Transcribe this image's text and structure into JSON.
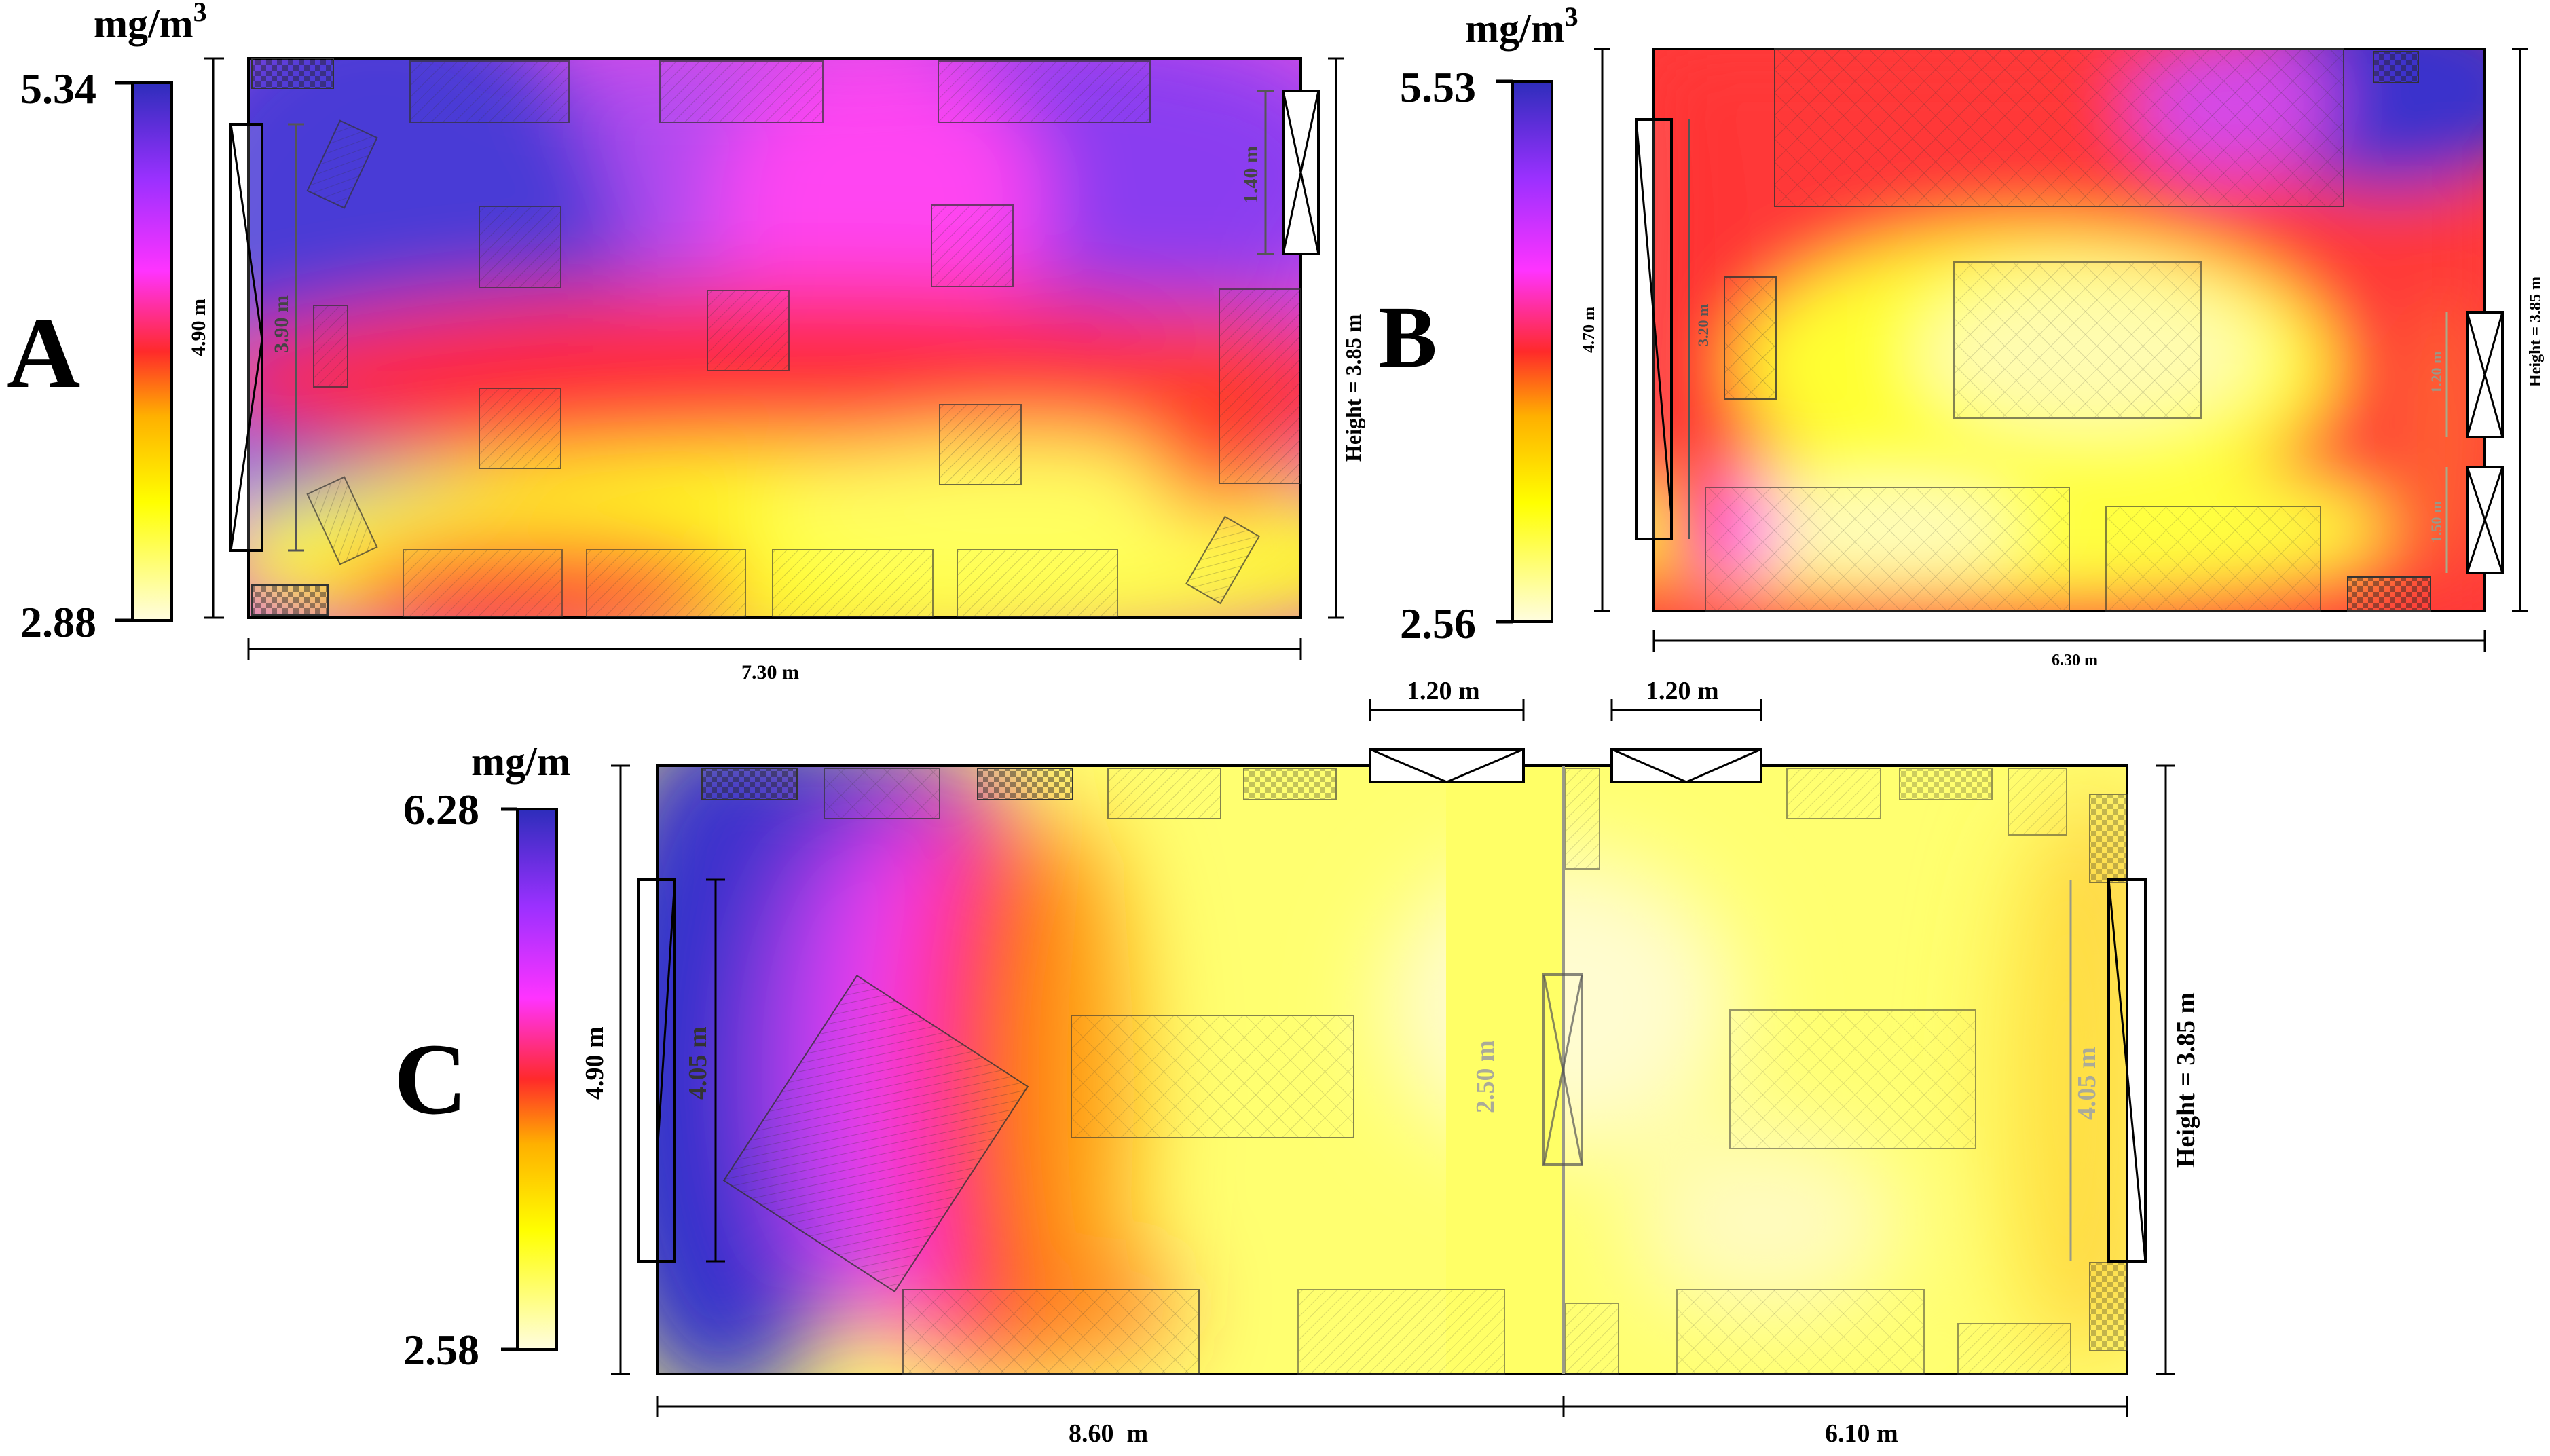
{
  "panels": {
    "A": {
      "letter": "A",
      "unit": "mg/m",
      "unit_sup": "3",
      "scale_max": "5.34",
      "scale_min": "2.88",
      "width_label": "7.30 m",
      "height_label": "Height = 3.85 m",
      "depth_label": "4.90 m",
      "window_label": "3.90 m",
      "door_label": "1.40 m"
    },
    "B": {
      "letter": "B",
      "unit": "mg/m",
      "unit_sup": "3",
      "scale_max": "5.53",
      "scale_min": "2.56",
      "width_label": "6.30 m",
      "height_label": "Height = 3.85 m",
      "depth_label": "4.70 m",
      "window_label": "3.20 m",
      "door1_label": "1.20 m",
      "door2_label": "1.50 m"
    },
    "C": {
      "letter": "C",
      "unit": "mg/m",
      "scale_max": "6.28",
      "scale_min": "2.58",
      "depth_label": "4.90 m",
      "window_left_label": "4.05 m",
      "window_right_label": "4.05 m",
      "inner_door_label": "2.50 m",
      "door_top1_label": "1.20 m",
      "door_top2_label": "1.20 m",
      "width1_label": "8.60  m",
      "width2_label": "6.10 m",
      "height_label": "Height = 3.85 m"
    }
  },
  "colors": {
    "low": "#fffde0",
    "yellow": "#ffff00",
    "orange": "#ff9900",
    "red": "#ff2a2a",
    "magenta": "#ff33ff",
    "purple": "#9b30ff",
    "blue": "#3333cc"
  }
}
